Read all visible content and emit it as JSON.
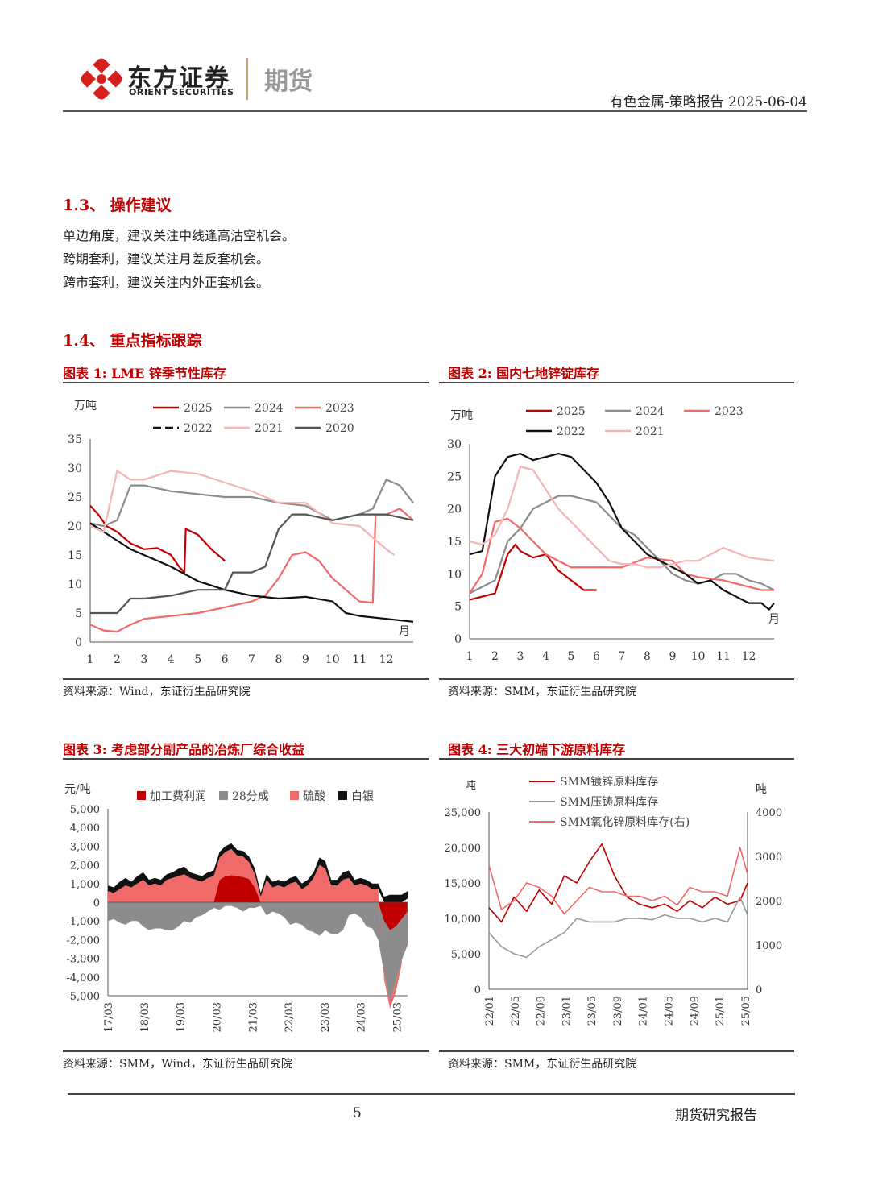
{
  "header": {
    "brand_cn": "东方证券",
    "brand_en": "ORIENT SECURITIES",
    "division": "期货",
    "report_info": "有色金属-策略报告 2025-06-04",
    "brand_color": "#d7201e"
  },
  "section13": {
    "title": "1.3、 操作建议",
    "lines": [
      "单边角度，建议关注中线逢高沽空机会。",
      "跨期套利，建议关注月差反套机会。",
      "跨市套利，建议关注内外正套机会。"
    ]
  },
  "section14": {
    "title": "1.4、 重点指标跟踪"
  },
  "fig1": {
    "title": "图表 1: LME 锌季节性库存",
    "source": "资料来源：Wind，东证衍生品研究院"
  },
  "fig2": {
    "title": "图表 2: 国内七地锌锭库存",
    "source": "资料来源：SMM，东证衍生品研究院"
  },
  "fig3": {
    "title": "图表 3: 考虑部分副产品的冶炼厂综合收益",
    "source": "资料来源：SMM，Wind，东证衍生品研究院"
  },
  "fig4": {
    "title": "图表 4: 三大初端下游原料库存",
    "source": "资料来源：SMM，东证衍生品研究院"
  },
  "footer": {
    "page": "5",
    "label": "期货研究报告"
  },
  "chart_data": [
    {
      "id": "fig1",
      "type": "line",
      "ylabel": "万吨",
      "xlabel": "月",
      "ylim": [
        0,
        35
      ],
      "yticks": [
        0,
        5,
        10,
        15,
        20,
        25,
        30,
        35
      ],
      "xticks": [
        1,
        2,
        3,
        4,
        5,
        6,
        7,
        8,
        9,
        10,
        11,
        12
      ],
      "series": [
        {
          "name": "2025",
          "color": "#c00000",
          "dash": false,
          "x": [
            1,
            1.3,
            1.6,
            2,
            2.5,
            3,
            3.5,
            4,
            4.3,
            4.5,
            4.55,
            5,
            5.5,
            6
          ],
          "y": [
            23.5,
            22,
            20,
            19,
            17,
            16,
            16.2,
            15,
            13,
            12,
            19.5,
            18.5,
            16,
            14
          ]
        },
        {
          "name": "2024",
          "color": "#8c8c8c",
          "dash": false,
          "x": [
            1,
            1.5,
            2,
            2.5,
            3,
            3.5,
            4,
            5,
            6,
            7,
            8,
            9,
            10,
            10.5,
            11,
            11.5,
            12,
            12.5,
            13
          ],
          "y": [
            20.5,
            20,
            21,
            27,
            27,
            26.5,
            26,
            25.5,
            25,
            25,
            24,
            23.5,
            21,
            21.5,
            22,
            23,
            28,
            27,
            24
          ]
        },
        {
          "name": "2023",
          "color": "#f06a6a",
          "dash": false,
          "x": [
            1,
            1.5,
            2,
            2.5,
            3,
            4,
            5,
            6,
            7,
            7.5,
            8,
            8.5,
            9,
            9.5,
            10,
            11,
            11.5,
            11.6,
            12,
            12.5,
            13
          ],
          "y": [
            3,
            2,
            1.8,
            3,
            4,
            4.5,
            5,
            6,
            7,
            8,
            11,
            15,
            15.5,
            14,
            11,
            7,
            6.8,
            22,
            22,
            23,
            21
          ]
        },
        {
          "name": "2022",
          "color": "#111111",
          "dash": false,
          "x": [
            1,
            1.5,
            2,
            2.5,
            3,
            4,
            5,
            6,
            7,
            8,
            9,
            10,
            10.5,
            11,
            12,
            13
          ],
          "y": [
            20.5,
            19,
            17.5,
            16,
            15,
            13,
            10.5,
            9,
            8,
            7.5,
            7.8,
            7,
            5,
            4.5,
            4,
            3.5
          ]
        },
        {
          "name": "2021",
          "color": "#f5b5b5",
          "dash": false,
          "x": [
            1,
            1.5,
            2,
            2.5,
            3,
            4,
            5,
            6,
            7,
            8,
            9,
            10,
            11,
            12,
            12.3
          ],
          "y": [
            20,
            19,
            29.5,
            28,
            28,
            29.5,
            29,
            27.5,
            26,
            24,
            24,
            20.5,
            20,
            16,
            15
          ]
        },
        {
          "name": "2020",
          "color": "#555555",
          "dash": false,
          "x": [
            1,
            2,
            2.5,
            3,
            4,
            5,
            6,
            6.3,
            7,
            7.5,
            8,
            8.5,
            9,
            10,
            11,
            12,
            13
          ],
          "y": [
            5,
            5,
            7.5,
            7.5,
            8,
            9,
            9,
            12,
            12,
            13,
            19.5,
            22,
            22,
            21,
            22,
            22,
            21
          ]
        }
      ]
    },
    {
      "id": "fig2",
      "type": "line",
      "xlabel": "月",
      "ylabel": "万吨",
      "ylim": [
        0,
        30
      ],
      "yticks": [
        0,
        5,
        10,
        15,
        20,
        25,
        30
      ],
      "xticks": [
        1,
        2,
        3,
        4,
        5,
        6,
        7,
        8,
        9,
        10,
        11,
        12
      ],
      "series": [
        {
          "name": "2025",
          "color": "#c00000",
          "x": [
            1,
            1.5,
            2,
            2.5,
            2.8,
            3,
            3.5,
            4,
            4.5,
            5,
            5.5,
            6
          ],
          "y": [
            6,
            6.5,
            7,
            13,
            14.5,
            13.5,
            12.5,
            13,
            10.5,
            9,
            7.5,
            7.5
          ]
        },
        {
          "name": "2024",
          "color": "#8c8c8c",
          "x": [
            1,
            1.5,
            2,
            2.5,
            3,
            3.5,
            4,
            4.5,
            5,
            5.5,
            6,
            6.5,
            7,
            7.5,
            8,
            8.5,
            9,
            9.5,
            10,
            10.5,
            11,
            11.5,
            12,
            12.5,
            13
          ],
          "y": [
            7,
            8,
            9,
            15,
            17,
            20,
            21,
            22,
            22,
            21.5,
            21,
            19,
            17,
            16,
            14,
            12,
            10,
            9,
            8.5,
            9,
            10,
            10,
            9,
            8.5,
            7.5
          ]
        },
        {
          "name": "2023",
          "color": "#f06a6a",
          "x": [
            1,
            1.5,
            2,
            2.5,
            3,
            4,
            5,
            6,
            7,
            8,
            9,
            9.5,
            10,
            11,
            12,
            12.5,
            13
          ],
          "y": [
            7,
            10,
            18,
            18.5,
            17,
            13,
            11,
            11,
            11,
            12.5,
            12,
            10,
            9.5,
            9,
            8,
            7.5,
            7.5
          ]
        },
        {
          "name": "2022",
          "color": "#111111",
          "x": [
            1,
            1.5,
            2,
            2.5,
            3,
            3.5,
            4,
            4.5,
            5,
            5.5,
            6,
            6.5,
            7,
            7.5,
            8,
            8.5,
            9,
            9.5,
            10,
            10.5,
            11,
            11.5,
            12,
            12.5,
            12.8,
            13
          ],
          "y": [
            13,
            13.5,
            25,
            28,
            28.5,
            27.5,
            28,
            28.5,
            28,
            26,
            24,
            21,
            17,
            15,
            13,
            12,
            11,
            10,
            8.5,
            9,
            7.5,
            6.5,
            5.5,
            5.5,
            4.5,
            5.5
          ]
        },
        {
          "name": "2021",
          "color": "#f5b5b5",
          "x": [
            1,
            1.5,
            2,
            2.5,
            3,
            3.5,
            4,
            4.5,
            5,
            5.5,
            6,
            6.5,
            7,
            7.5,
            8,
            8.5,
            9,
            9.5,
            10,
            11,
            12,
            13
          ],
          "y": [
            15,
            14.5,
            16,
            20,
            26.5,
            26,
            23,
            20,
            18,
            16,
            14,
            12,
            11.5,
            11.5,
            11,
            11,
            11.5,
            12,
            12,
            14,
            12.5,
            12
          ]
        }
      ]
    },
    {
      "id": "fig3",
      "type": "area",
      "ylabel": "元/吨",
      "ylim": [
        -5000,
        5000
      ],
      "yticks": [
        -5000,
        -4000,
        -3000,
        -2000,
        -1000,
        0,
        1000,
        2000,
        3000,
        4000,
        5000
      ],
      "xticks": [
        "17/03",
        "18/03",
        "19/03",
        "20/03",
        "21/03",
        "22/03",
        "23/03",
        "24/03",
        "25/03"
      ],
      "x": [
        0,
        2,
        4,
        6,
        8,
        10,
        12,
        14,
        16,
        18,
        20,
        22,
        24,
        26,
        28,
        30,
        32,
        34,
        36,
        38,
        40,
        42,
        44,
        46,
        48,
        50,
        52,
        54,
        56,
        58,
        60,
        62,
        64,
        66,
        68,
        70,
        72,
        74,
        76,
        78,
        80,
        82,
        84,
        86,
        88,
        90,
        92,
        94,
        96,
        98,
        100,
        102
      ],
      "series": [
        {
          "name": "加工费利润",
          "color": "#c00000",
          "values": [
            0,
            0,
            0,
            0,
            0,
            0,
            0,
            0,
            0,
            0,
            0,
            0,
            0,
            0,
            0,
            0,
            0,
            0,
            0,
            1200,
            1400,
            1450,
            1400,
            1350,
            1250,
            800,
            0,
            0,
            0,
            0,
            0,
            0,
            0,
            0,
            0,
            0,
            0,
            0,
            0,
            0,
            0,
            0,
            0,
            0,
            0,
            0,
            0,
            -1000,
            -1500,
            -1300,
            -900,
            -500
          ]
        },
        {
          "name": "28分成",
          "color": "#8c8c8c",
          "values": [
            -1000,
            -900,
            -1100,
            -1200,
            -1000,
            -1000,
            -1300,
            -1500,
            -1400,
            -1400,
            -1500,
            -1500,
            -1300,
            -1000,
            -1100,
            -800,
            -700,
            -500,
            -300,
            -400,
            -200,
            -200,
            -300,
            -500,
            -300,
            -300,
            -200,
            -700,
            -500,
            -600,
            -800,
            -1200,
            -1100,
            -1200,
            -1500,
            -1600,
            -1800,
            -1500,
            -1700,
            -1700,
            -1500,
            -700,
            -600,
            -800,
            -1300,
            -1400,
            -2000,
            -2800,
            -3800,
            -3000,
            -2200,
            -1800
          ]
        },
        {
          "name": "硫酸",
          "color": "#f06a6a",
          "values": [
            600,
            500,
            700,
            900,
            800,
            1000,
            1200,
            900,
            1000,
            900,
            1200,
            1300,
            1400,
            1500,
            1300,
            1200,
            1100,
            1300,
            1400,
            1200,
            1300,
            1400,
            1100,
            1100,
            900,
            700,
            300,
            1200,
            800,
            900,
            800,
            1000,
            1100,
            700,
            900,
            1300,
            2000,
            1800,
            900,
            900,
            1200,
            1300,
            900,
            1000,
            900,
            700,
            700,
            -300,
            -400,
            -500,
            -200,
            200
          ]
        },
        {
          "name": "白银",
          "color": "#111111",
          "values": [
            300,
            300,
            400,
            400,
            300,
            400,
            400,
            300,
            300,
            300,
            300,
            300,
            400,
            400,
            300,
            300,
            300,
            300,
            300,
            300,
            300,
            300,
            300,
            300,
            300,
            300,
            200,
            300,
            300,
            300,
            300,
            300,
            300,
            300,
            300,
            300,
            400,
            400,
            300,
            300,
            400,
            400,
            300,
            300,
            300,
            300,
            300,
            300,
            400,
            400,
            400,
            400
          ]
        }
      ]
    },
    {
      "id": "fig4",
      "type": "line",
      "ylabel_left": "吨",
      "ylabel_right": "吨",
      "ylim_left": [
        0,
        25000
      ],
      "yticks_left": [
        "0",
        "5,000",
        "10,000",
        "15,000",
        "20,000",
        "25,000"
      ],
      "ylim_right": [
        0,
        4000
      ],
      "yticks_right": [
        "0",
        "1000",
        "2000",
        "3000",
        "4000"
      ],
      "xticks": [
        "22/01",
        "22/05",
        "22/09",
        "23/01",
        "23/05",
        "23/09",
        "24/01",
        "24/05",
        "24/09",
        "25/01",
        "25/05"
      ],
      "series": [
        {
          "name": "SMM镀锌原料库存",
          "color": "#c00000",
          "axis": "left",
          "x": [
            0,
            0.5,
            1,
            1.5,
            2,
            2.5,
            3,
            3.5,
            4,
            4.5,
            5,
            5.5,
            6,
            6.5,
            7,
            7.5,
            8,
            8.5,
            9,
            9.5,
            10,
            10.3
          ],
          "y": [
            11500,
            9500,
            13000,
            11000,
            14000,
            12000,
            16000,
            15000,
            18000,
            20500,
            16000,
            13000,
            12000,
            11500,
            12000,
            11000,
            12500,
            11500,
            13000,
            12000,
            12500,
            15000
          ]
        },
        {
          "name": "SMM压铸原料库存",
          "color": "#999999",
          "axis": "left",
          "x": [
            0,
            0.5,
            1,
            1.5,
            2,
            2.5,
            3,
            3.5,
            4,
            4.5,
            5,
            5.5,
            6,
            6.5,
            7,
            7.5,
            8,
            8.5,
            9,
            9.5,
            10,
            10.3
          ],
          "y": [
            8000,
            6000,
            5000,
            4500,
            6000,
            7000,
            8000,
            10000,
            9500,
            9500,
            9500,
            10000,
            10000,
            9800,
            10500,
            10000,
            10000,
            9500,
            10000,
            9500,
            13000,
            10500
          ]
        },
        {
          "name": "SMM氧化锌原料库存(右)",
          "color": "#f06a6a",
          "axis": "right",
          "x": [
            0,
            0.5,
            1,
            1.5,
            2,
            2.5,
            3,
            3.5,
            4,
            4.5,
            5,
            5.5,
            6,
            6.5,
            7,
            7.5,
            8,
            8.5,
            9,
            9.5,
            10,
            10.3
          ],
          "y": [
            2800,
            1800,
            2000,
            2400,
            2300,
            2100,
            1700,
            2000,
            2300,
            2200,
            2200,
            2100,
            2100,
            2000,
            2100,
            1900,
            2300,
            2200,
            2200,
            2100,
            3200,
            2600
          ]
        }
      ]
    }
  ]
}
